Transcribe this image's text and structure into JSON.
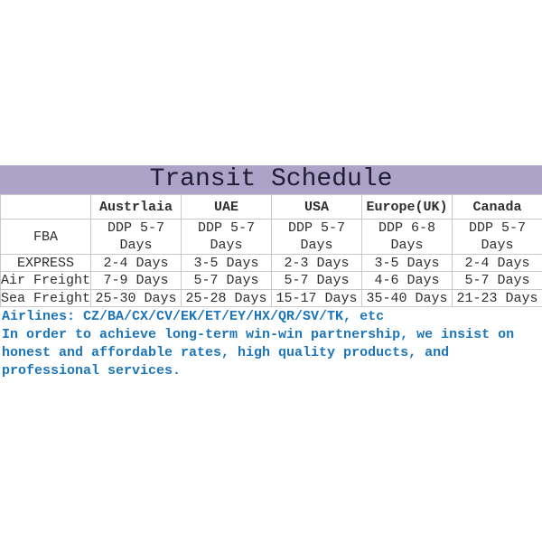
{
  "title": "Transit Schedule",
  "colors": {
    "banner_bg": "#ada2c8",
    "banner_text": "#1d1d33",
    "note_blue": "#1c75b8",
    "table_border": "#c9c9c9",
    "table_text": "#2e2e2e"
  },
  "table": {
    "headers": [
      "",
      "Austrlaia",
      "UAE",
      "USA",
      "Europe(UK)",
      "Canada"
    ],
    "rows": [
      {
        "label": "FBA",
        "values": [
          "DDP 5-7 Days",
          "DDP 5-7 Days",
          "DDP 5-7 Days",
          "DDP 6-8 Days",
          "DDP 5-7 Days"
        ]
      },
      {
        "label": "EXPRESS",
        "values": [
          "2-4 Days",
          "3-5 Days",
          "2-3 Days",
          "3-5 Days",
          "2-4 Days"
        ]
      },
      {
        "label": "Air Freight",
        "values": [
          "7-9 Days",
          "5-7 Days",
          "5-7 Days",
          "4-6 Days",
          "5-7 Days"
        ]
      },
      {
        "label": "Sea Freight",
        "values": [
          "25-30 Days",
          "25-28 Days",
          "15-17 Days",
          "35-40 Days",
          "21-23 Days"
        ]
      }
    ]
  },
  "notes": {
    "airlines": "Airlines: CZ/BA/CX/CV/EK/ET/EY/HX/QR/SV/TK, etc",
    "paragraph": "In order to achieve long-term win-win partnership, we insist on honest and affordable rates, high quality products, and professional services."
  },
  "chart_data": {
    "type": "table",
    "title": "Transit Schedule",
    "columns": [
      "",
      "Austrlaia",
      "UAE",
      "USA",
      "Europe(UK)",
      "Canada"
    ],
    "rows": [
      [
        "FBA",
        "DDP 5-7 Days",
        "DDP 5-7 Days",
        "DDP 5-7 Days",
        "DDP 6-8 Days",
        "DDP 5-7 Days"
      ],
      [
        "EXPRESS",
        "2-4 Days",
        "3-5 Days",
        "2-3 Days",
        "3-5 Days",
        "2-4 Days"
      ],
      [
        "Air Freight",
        "7-9 Days",
        "5-7 Days",
        "5-7 Days",
        "4-6 Days",
        "5-7 Days"
      ],
      [
        "Sea Freight",
        "25-30 Days",
        "25-28 Days",
        "15-17 Days",
        "35-40 Days",
        "21-23 Days"
      ]
    ],
    "annotations": [
      "Airlines: CZ/BA/CX/CV/EK/ET/EY/HX/QR/SV/TK, etc",
      "In order to achieve long-term win-win partnership, we insist on honest and affordable rates, high quality products, and professional services."
    ]
  }
}
